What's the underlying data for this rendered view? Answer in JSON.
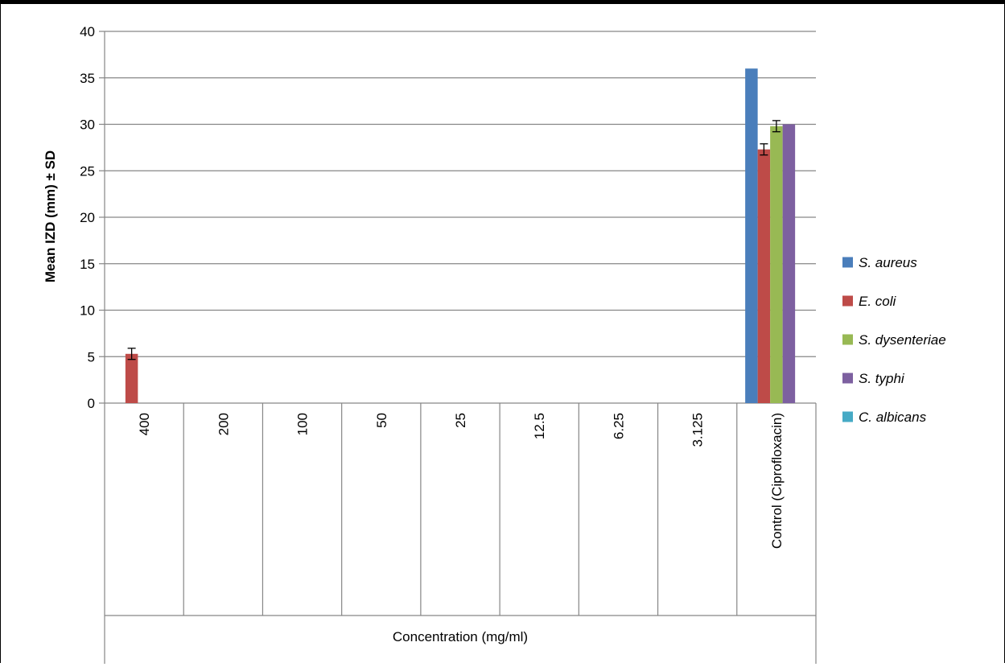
{
  "chart_data": {
    "type": "bar",
    "categories": [
      "400",
      "200",
      "100",
      "50",
      "25",
      "12.5",
      "6.25",
      "3.125",
      "Control (Ciprofloxacin)"
    ],
    "series": [
      {
        "name": "S. aureus",
        "color": "#4a7ebb",
        "values": [
          0,
          0,
          0,
          0,
          0,
          0,
          0,
          0,
          36
        ],
        "error": [
          0,
          0,
          0,
          0,
          0,
          0,
          0,
          0,
          0
        ]
      },
      {
        "name": "E. coli",
        "color": "#be4b48",
        "values": [
          5.3,
          0,
          0,
          0,
          0,
          0,
          0,
          0,
          27.3
        ],
        "error": [
          0.6,
          0,
          0,
          0,
          0,
          0,
          0,
          0,
          0.6
        ]
      },
      {
        "name": "S. dysenteriae",
        "color": "#98b954",
        "values": [
          0,
          0,
          0,
          0,
          0,
          0,
          0,
          0,
          29.8
        ],
        "error": [
          0,
          0,
          0,
          0,
          0,
          0,
          0,
          0,
          0.6
        ]
      },
      {
        "name": "S. typhi",
        "color": "#7d60a0",
        "values": [
          0,
          0,
          0,
          0,
          0,
          0,
          0,
          0,
          30
        ],
        "error": [
          0,
          0,
          0,
          0,
          0,
          0,
          0,
          0,
          0
        ]
      },
      {
        "name": "C. albicans",
        "color": "#46aac5",
        "values": [
          0,
          0,
          0,
          0,
          0,
          0,
          0,
          0,
          0
        ],
        "error": [
          0,
          0,
          0,
          0,
          0,
          0,
          0,
          0,
          0
        ]
      }
    ],
    "yticks": [
      "0",
      "5",
      "10",
      "15",
      "20",
      "25",
      "30",
      "35",
      "40"
    ],
    "ylim": [
      0,
      40
    ],
    "xlabel": "Concentration (mg/ml)",
    "ylabel": "Mean IZD (mm) ± SD",
    "grid": true,
    "legend_position": "right"
  }
}
